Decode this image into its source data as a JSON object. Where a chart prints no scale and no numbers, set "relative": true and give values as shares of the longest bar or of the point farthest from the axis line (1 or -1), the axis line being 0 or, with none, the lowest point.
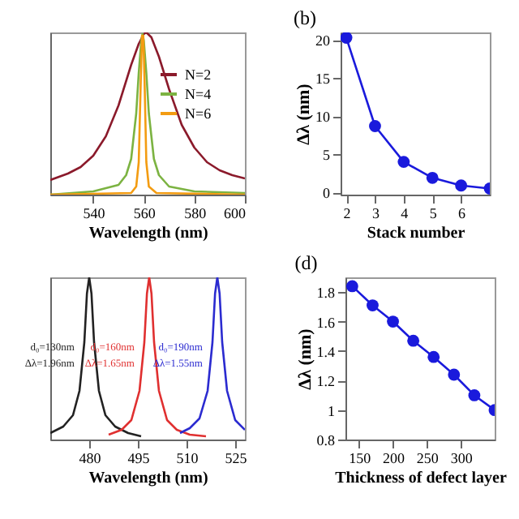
{
  "chart_data": [
    {
      "type": "line",
      "relative": true,
      "xlabel": "Wavelength (nm)",
      "xlim": [
        523,
        600
      ],
      "xticks": [
        540,
        560,
        580,
        600
      ],
      "tick_labels": "x",
      "legend": "top right",
      "series": [
        {
          "name": "N=2",
          "color": "#8b1a2b",
          "x": [
            523,
            530,
            535,
            540,
            545,
            550,
            555,
            558,
            560,
            561,
            563,
            566,
            570,
            575,
            580,
            585,
            590,
            595,
            600
          ],
          "values": [
            0.09,
            0.13,
            0.17,
            0.24,
            0.36,
            0.55,
            0.8,
            0.93,
            0.99,
            1.0,
            0.97,
            0.85,
            0.65,
            0.43,
            0.29,
            0.2,
            0.15,
            0.12,
            0.1
          ]
        },
        {
          "name": "N=4",
          "color": "#7cb342",
          "x": [
            523,
            540,
            550,
            553,
            555,
            557,
            558,
            559,
            559.5,
            560,
            561,
            562,
            564,
            566,
            570,
            580,
            600
          ],
          "values": [
            0.0,
            0.02,
            0.06,
            0.12,
            0.22,
            0.5,
            0.75,
            0.95,
            0.99,
            0.95,
            0.75,
            0.5,
            0.22,
            0.12,
            0.05,
            0.02,
            0.01
          ]
        },
        {
          "name": "N=6",
          "color": "#f39c12",
          "x": [
            523,
            555,
            557,
            558,
            558.8,
            559.3,
            559.8,
            560.3,
            561,
            562,
            565,
            600
          ],
          "values": [
            0.0,
            0.01,
            0.05,
            0.2,
            0.7,
            0.98,
            0.98,
            0.7,
            0.2,
            0.05,
            0.01,
            0.0
          ]
        }
      ]
    },
    {
      "type": "line",
      "title": "(b)",
      "xlabel": "Stack number",
      "ylabel": "Δλ (nm)",
      "xlim": [
        1.8,
        7
      ],
      "xticks": [
        2,
        3,
        4,
        5,
        6
      ],
      "ylim": [
        -0.3,
        21
      ],
      "yticks": [
        0,
        5,
        10,
        15,
        20
      ],
      "marker": "circle",
      "series": [
        {
          "color": "#1a1adc",
          "x": [
            2,
            3,
            4,
            5,
            6,
            7
          ],
          "values": [
            20.3,
            8.7,
            4.0,
            1.9,
            0.9,
            0.5
          ]
        }
      ]
    },
    {
      "type": "line",
      "relative": true,
      "xlabel": "Wavelength (nm)",
      "xlim": [
        468,
        528
      ],
      "xticks": [
        480,
        495,
        510,
        525
      ],
      "tick_labels": "x",
      "series": [
        {
          "color": "#222222",
          "x": [
            468,
            472,
            475,
            477,
            478.5,
            479.3,
            480,
            480.7,
            481.5,
            483,
            485,
            488,
            492,
            496
          ],
          "values": [
            0.04,
            0.08,
            0.15,
            0.3,
            0.6,
            0.9,
            1.0,
            0.9,
            0.6,
            0.3,
            0.15,
            0.08,
            0.04,
            0.02
          ]
        },
        {
          "color": "#e03030",
          "x": [
            486,
            490,
            493,
            495.5,
            497,
            497.8,
            498.5,
            499.2,
            500,
            501.5,
            504,
            507,
            511,
            516
          ],
          "values": [
            0.03,
            0.06,
            0.12,
            0.3,
            0.6,
            0.9,
            1.0,
            0.9,
            0.6,
            0.3,
            0.12,
            0.06,
            0.03,
            0.02
          ]
        },
        {
          "color": "#2b2bd0",
          "x": [
            508,
            511,
            514,
            516.5,
            518,
            518.8,
            519.5,
            520.2,
            521,
            522.5,
            525,
            528
          ],
          "values": [
            0.04,
            0.07,
            0.13,
            0.3,
            0.6,
            0.9,
            1.0,
            0.9,
            0.6,
            0.3,
            0.12,
            0.06
          ]
        }
      ],
      "annotations": [
        "d₀=130nm",
        "Δλ=1.96nm",
        "d₀=160nm",
        "Δλ=1.65nm",
        "d₀=190nm",
        "Δλ=1.55nm"
      ]
    },
    {
      "type": "line",
      "title": "(d)",
      "xlabel": "Thickness of defect layer",
      "ylabel": "Δλ (nm)",
      "xlim": [
        130,
        350
      ],
      "xticks": [
        150,
        200,
        250,
        300
      ],
      "ylim": [
        0.8,
        1.9
      ],
      "yticks": [
        0.8,
        1,
        1.2,
        1.4,
        1.6,
        1.8
      ],
      "marker": "circle",
      "series": [
        {
          "color": "#1a1adc",
          "x": [
            140,
            170,
            200,
            230,
            260,
            290,
            320,
            350
          ],
          "values": [
            1.84,
            1.71,
            1.6,
            1.47,
            1.36,
            1.24,
            1.1,
            1.0
          ]
        }
      ]
    }
  ]
}
